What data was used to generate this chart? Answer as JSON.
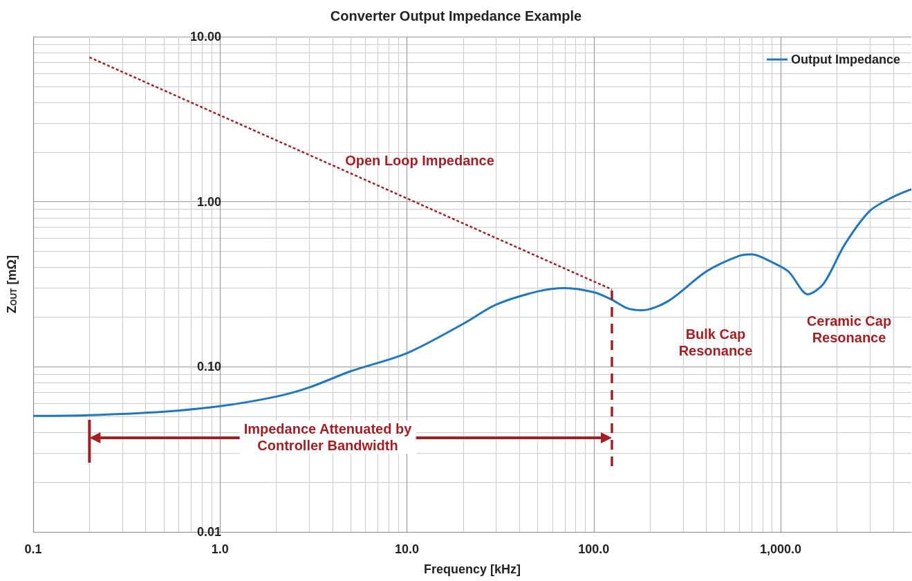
{
  "chart_data": {
    "type": "line",
    "title": "Converter Output Impedance Example",
    "xlabel": "Frequency [kHz]",
    "ylabel": "Z$_{OUT}$ [mΩ]",
    "log": "xy",
    "grid": true,
    "legend": "top right",
    "marker": "none",
    "xlim": [
      0.1,
      5000
    ],
    "xticks": [
      0.1,
      {
        "value": 1,
        "label": "1.0"
      },
      {
        "value": 10,
        "label": "10.0"
      },
      {
        "value": 100,
        "label": "100.0"
      },
      {
        "value": 1000,
        "label": "1,000.0"
      }
    ],
    "ylim": [
      0.01,
      10
    ],
    "yticks": [
      {
        "value": 0.01,
        "label": "0.01"
      },
      {
        "value": 0.1,
        "label": "0.10"
      },
      {
        "value": 1,
        "label": "1.00"
      },
      {
        "value": 10,
        "label": "10.00"
      }
    ],
    "series": [
      {
        "name": "Output Impedance",
        "color": "#1f77c0",
        "line_style": "solid",
        "x": [
          0.1,
          0.2,
          0.5,
          1,
          2,
          3,
          5,
          10,
          20,
          30,
          50,
          70,
          100,
          125,
          150,
          180,
          250,
          400,
          600,
          700,
          900,
          1100,
          1400,
          1700,
          2200,
          3000,
          4000,
          5000
        ],
        "values": [
          0.0504,
          0.051,
          0.0535,
          0.0577,
          0.066,
          0.075,
          0.094,
          0.121,
          0.182,
          0.238,
          0.286,
          0.3,
          0.283,
          0.255,
          0.227,
          0.22,
          0.25,
          0.378,
          0.47,
          0.48,
          0.43,
          0.378,
          0.275,
          0.32,
          0.55,
          0.88,
          1.07,
          1.19
        ]
      },
      {
        "color": "#a31f24",
        "line_style": "dotted",
        "x": [
          0.2,
          125
        ],
        "values": [
          7.5,
          0.294
        ]
      },
      {
        "color": "#a31f24",
        "line_style": "dashed",
        "x": [
          125,
          125
        ],
        "values": [
          0.025,
          0.29
        ]
      }
    ],
    "annotations": [
      "Open Loop Impedance",
      "Bulk Cap\nResonance",
      "Ceramic Cap\nResonance",
      "Impedance Attenuated by\nController Bandwidth"
    ]
  }
}
